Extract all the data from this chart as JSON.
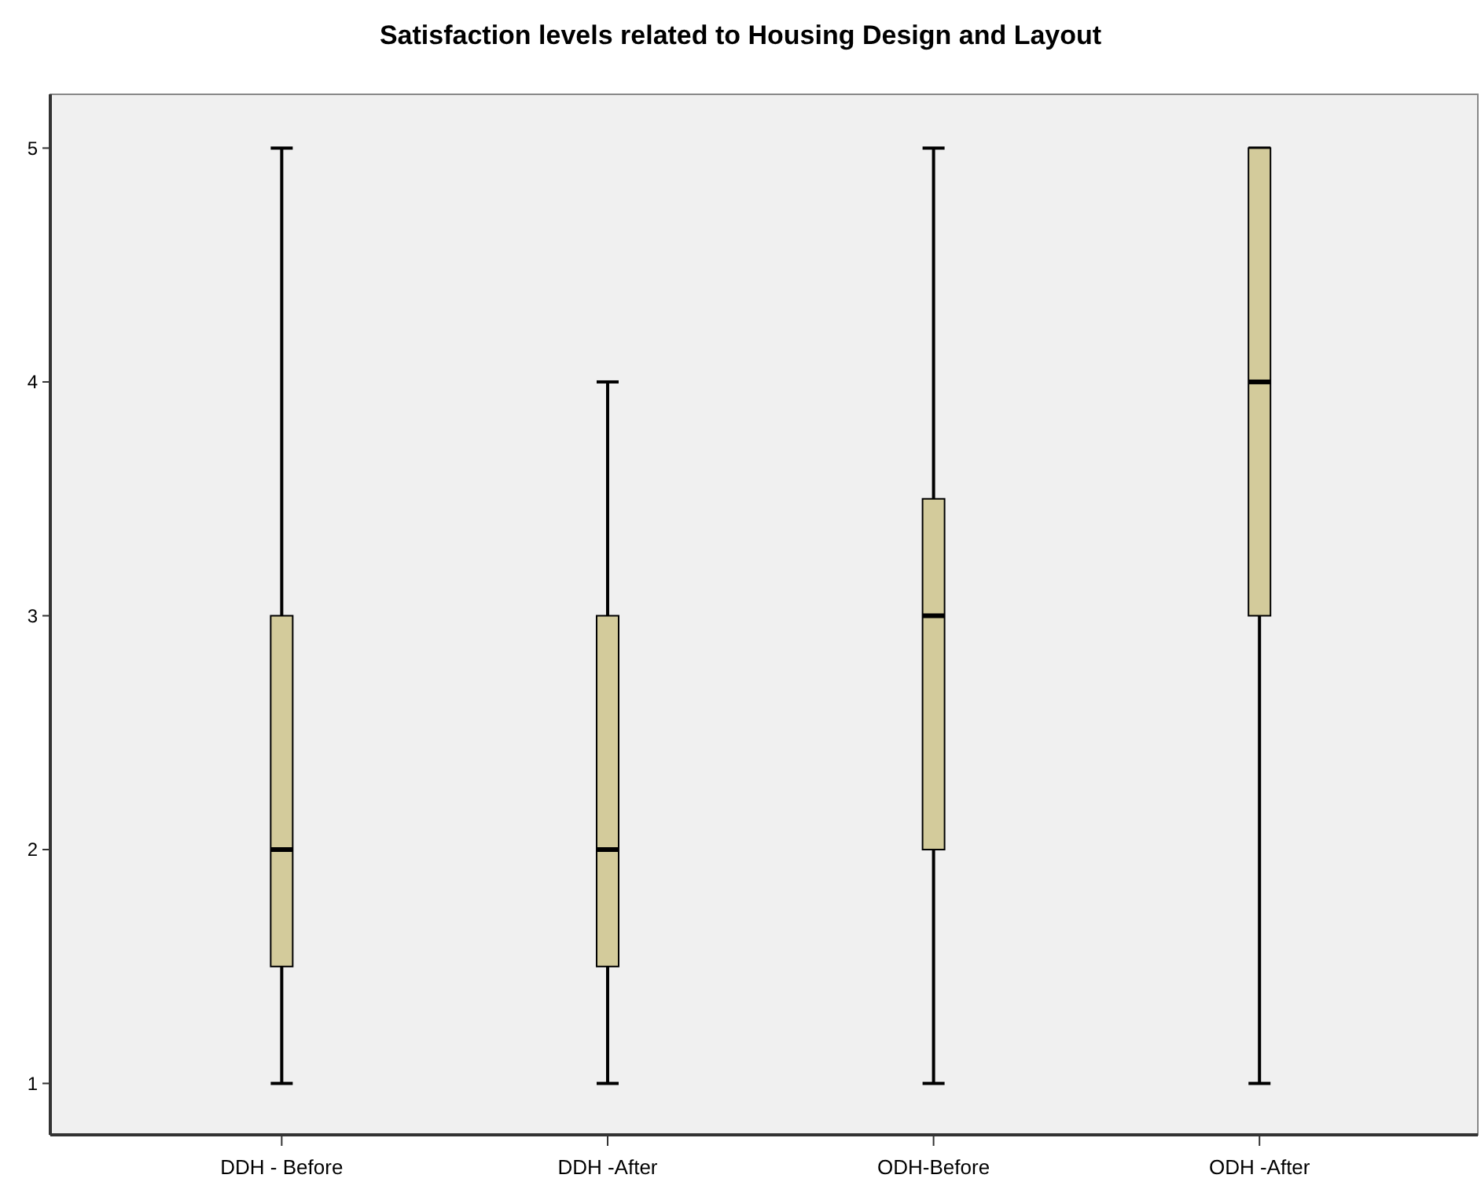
{
  "chart_data": {
    "type": "box",
    "title": "Satisfaction levels related to Housing Design and Layout",
    "categories": [
      "DDH - Before",
      "DDH -After",
      "ODH-Before",
      "ODH -After"
    ],
    "boxes": [
      {
        "low": 1,
        "q1": 1.5,
        "median": 2,
        "q3": 3,
        "high": 5
      },
      {
        "low": 1,
        "q1": 1.5,
        "median": 2,
        "q3": 3,
        "high": 4
      },
      {
        "low": 1,
        "q1": 2,
        "median": 3,
        "q3": 3.5,
        "high": 5
      },
      {
        "low": 1,
        "q1": 3,
        "median": 4,
        "q3": 5,
        "high": 5
      }
    ],
    "color": "#d3cb9b",
    "ylim": [
      0.78,
      5.23
    ],
    "yticks": [
      1,
      2,
      3,
      4,
      5
    ],
    "grid": false
  }
}
